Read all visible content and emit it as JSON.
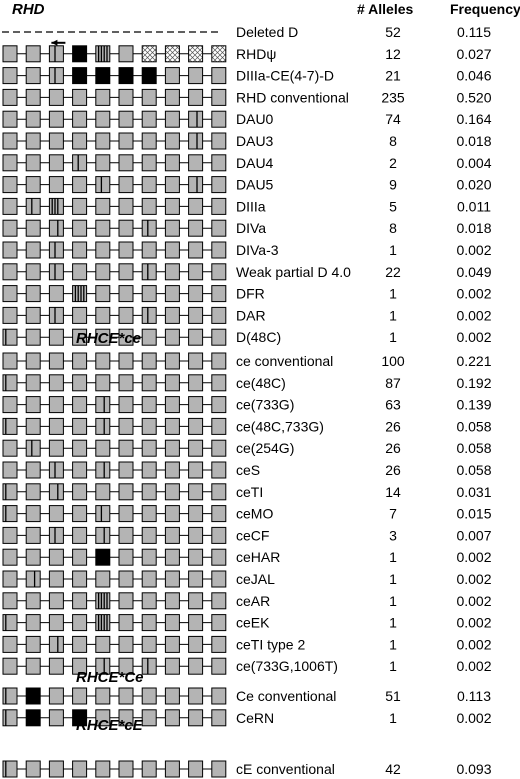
{
  "columns": {
    "alleles": "# Alleles",
    "frequency": "Frequency"
  },
  "colors": {
    "exon": "#b4b4b4",
    "exon_dark": "#000000",
    "outline": "#000000",
    "paper": "#ffffff"
  },
  "sections": [
    {
      "title": "RHD",
      "rows": [
        {
          "name": "Deleted D",
          "alleles": "52",
          "freq": "0.115",
          "deleted": true
        },
        {
          "name": "RHDψ",
          "alleles": "12",
          "freq": "0.027",
          "arrow": true,
          "exons": [
            {},
            {},
            {
              "marks": [
                2
              ]
            },
            {
              "fill": "black"
            },
            {
              "marks": [
                1,
                2,
                3,
                4
              ]
            },
            {},
            {
              "pattern": "cross"
            },
            {
              "pattern": "cross"
            },
            {
              "pattern": "cross"
            },
            {
              "pattern": "cross"
            }
          ]
        },
        {
          "name": "DIIIa-CE(4-7)-D",
          "alleles": "21",
          "freq": "0.046",
          "exons": [
            {},
            {},
            {
              "marks": [
                2
              ]
            },
            {
              "fill": "black"
            },
            {
              "fill": "black"
            },
            {
              "fill": "black"
            },
            {
              "fill": "black"
            },
            {},
            {},
            {}
          ]
        },
        {
          "name": "RHD conventional",
          "alleles": "235",
          "freq": "0.520",
          "exons": [
            {},
            {},
            {},
            {},
            {},
            {},
            {},
            {},
            {},
            {}
          ]
        },
        {
          "name": "DAU0",
          "alleles": "74",
          "freq": "0.164",
          "exons": [
            {},
            {},
            {},
            {},
            {},
            {},
            {},
            {},
            {
              "marks": [
                3
              ]
            },
            {}
          ]
        },
        {
          "name": "DAU3",
          "alleles": "8",
          "freq": "0.018",
          "exons": [
            {},
            {},
            {},
            {},
            {},
            {},
            {},
            {},
            {
              "marks": [
                3
              ]
            },
            {}
          ]
        },
        {
          "name": "DAU4",
          "alleles": "2",
          "freq": "0.004",
          "exons": [
            {},
            {},
            {},
            {
              "marks": [
                2
              ]
            },
            {},
            {},
            {},
            {},
            {},
            {}
          ]
        },
        {
          "name": "DAU5",
          "alleles": "9",
          "freq": "0.020",
          "exons": [
            {},
            {},
            {},
            {},
            {
              "marks": [
                2
              ]
            },
            {},
            {},
            {},
            {
              "marks": [
                3
              ]
            },
            {}
          ]
        },
        {
          "name": "DIIIa",
          "alleles": "5",
          "freq": "0.011",
          "exons": [
            {},
            {
              "marks": [
                2
              ]
            },
            {
              "marks": [
                1,
                2,
                3
              ]
            },
            {},
            {},
            {},
            {},
            {},
            {},
            {}
          ]
        },
        {
          "name": "DIVa",
          "alleles": "8",
          "freq": "0.018",
          "exons": [
            {},
            {},
            {
              "marks": [
                3
              ]
            },
            {},
            {},
            {},
            {
              "marks": [
                2
              ]
            },
            {},
            {},
            {}
          ]
        },
        {
          "name": "DIVa-3",
          "alleles": "1",
          "freq": "0.002",
          "exons": [
            {},
            {},
            {
              "marks": [
                2
              ]
            },
            {},
            {},
            {},
            {},
            {},
            {},
            {}
          ]
        },
        {
          "name": "Weak partial D 4.0",
          "alleles": "22",
          "freq": "0.049",
          "exons": [
            {},
            {},
            {
              "marks": [
                2
              ]
            },
            {},
            {},
            {},
            {
              "marks": [
                2
              ]
            },
            {},
            {},
            {}
          ]
        },
        {
          "name": "DFR",
          "alleles": "1",
          "freq": "0.002",
          "exons": [
            {},
            {},
            {},
            {
              "marks": [
                1,
                2,
                3,
                4
              ]
            },
            {},
            {},
            {},
            {},
            {},
            {}
          ]
        },
        {
          "name": "DAR",
          "alleles": "1",
          "freq": "0.002",
          "exons": [
            {},
            {},
            {
              "marks": [
                2
              ]
            },
            {},
            {},
            {},
            {
              "marks": [
                2
              ]
            },
            {},
            {},
            {}
          ]
        },
        {
          "name": "D(48C)",
          "alleles": "1",
          "freq": "0.002",
          "exons": [
            {
              "marks": [
                1
              ]
            },
            {},
            {},
            {},
            {},
            {},
            {},
            {},
            {},
            {}
          ]
        }
      ]
    },
    {
      "title": "RHCE*ce",
      "rows": [
        {
          "name": "ce conventional",
          "alleles": "100",
          "freq": "0.221",
          "exons": [
            {},
            {},
            {},
            {},
            {},
            {},
            {},
            {},
            {},
            {}
          ]
        },
        {
          "name": "ce(48C)",
          "alleles": "87",
          "freq": "0.192",
          "exons": [
            {
              "marks": [
                1
              ]
            },
            {},
            {},
            {},
            {},
            {},
            {},
            {},
            {},
            {}
          ]
        },
        {
          "name": "ce(733G)",
          "alleles": "63",
          "freq": "0.139",
          "exons": [
            {},
            {},
            {},
            {},
            {
              "marks": [
                3
              ]
            },
            {},
            {},
            {},
            {},
            {}
          ]
        },
        {
          "name": "ce(48C,733G)",
          "alleles": "26",
          "freq": "0.058",
          "exons": [
            {
              "marks": [
                1
              ]
            },
            {},
            {},
            {},
            {
              "marks": [
                3
              ]
            },
            {},
            {},
            {},
            {},
            {}
          ]
        },
        {
          "name": "ce(254G)",
          "alleles": "26",
          "freq": "0.058",
          "exons": [
            {},
            {
              "marks": [
                2
              ]
            },
            {},
            {},
            {},
            {},
            {},
            {},
            {},
            {}
          ]
        },
        {
          "name": "ceS",
          "alleles": "26",
          "freq": "0.058",
          "exons": [
            {},
            {},
            {
              "marks": [
                2
              ]
            },
            {},
            {
              "marks": [
                3
              ]
            },
            {},
            {},
            {},
            {},
            {}
          ]
        },
        {
          "name": "ceTI",
          "alleles": "14",
          "freq": "0.031",
          "exons": [
            {
              "marks": [
                1
              ]
            },
            {},
            {
              "marks": [
                3
              ]
            },
            {},
            {},
            {},
            {},
            {},
            {},
            {}
          ]
        },
        {
          "name": "ceMO",
          "alleles": "7",
          "freq": "0.015",
          "exons": [
            {
              "marks": [
                1
              ]
            },
            {},
            {},
            {},
            {
              "marks": [
                2
              ]
            },
            {},
            {},
            {},
            {},
            {}
          ]
        },
        {
          "name": "ceCF",
          "alleles": "3",
          "freq": "0.007",
          "exons": [
            {},
            {},
            {
              "marks": [
                2
              ]
            },
            {},
            {
              "marks": [
                3
              ]
            },
            {},
            {},
            {},
            {},
            {}
          ]
        },
        {
          "name": "ceHAR",
          "alleles": "1",
          "freq": "0.002",
          "exons": [
            {},
            {},
            {},
            {},
            {
              "fill": "black"
            },
            {},
            {},
            {},
            {},
            {}
          ]
        },
        {
          "name": "ceJAL",
          "alleles": "1",
          "freq": "0.002",
          "exons": [
            {},
            {
              "marks": [
                3
              ]
            },
            {},
            {},
            {},
            {},
            {},
            {},
            {},
            {}
          ]
        },
        {
          "name": "ceAR",
          "alleles": "1",
          "freq": "0.002",
          "exons": [
            {},
            {},
            {},
            {},
            {
              "marks": [
                1,
                2,
                3,
                4
              ]
            },
            {},
            {},
            {},
            {},
            {}
          ]
        },
        {
          "name": "ceEK",
          "alleles": "1",
          "freq": "0.002",
          "exons": [
            {
              "marks": [
                1
              ]
            },
            {},
            {},
            {},
            {
              "marks": [
                1,
                2,
                3,
                4
              ]
            },
            {},
            {},
            {},
            {},
            {}
          ]
        },
        {
          "name": "ceTI type 2",
          "alleles": "1",
          "freq": "0.002",
          "exons": [
            {},
            {},
            {
              "marks": [
                3
              ]
            },
            {},
            {},
            {},
            {},
            {},
            {},
            {}
          ]
        },
        {
          "name": "ce(733G,1006T)",
          "alleles": "1",
          "freq": "0.002",
          "exons": [
            {},
            {},
            {},
            {},
            {
              "marks": [
                3
              ]
            },
            {},
            {
              "marks": [
                2
              ]
            },
            {},
            {},
            {}
          ]
        }
      ]
    },
    {
      "title": "RHCE*Ce",
      "rows": [
        {
          "name": "Ce conventional",
          "alleles": "51",
          "freq": "0.113",
          "exons": [
            {
              "marks": [
                1
              ]
            },
            {
              "fill": "black"
            },
            {},
            {},
            {},
            {},
            {},
            {},
            {},
            {}
          ]
        },
        {
          "name": "CeRN",
          "alleles": "1",
          "freq": "0.002",
          "exons": [
            {
              "marks": [
                1
              ]
            },
            {
              "fill": "black"
            },
            {},
            {
              "fill": "black"
            },
            {},
            {},
            {},
            {},
            {},
            {}
          ]
        }
      ]
    },
    {
      "title": "RHCE*cE",
      "rows": [
        {
          "name": "cE conventional",
          "alleles": "42",
          "freq": "0.093",
          "exons": [
            {
              "marks": [
                1
              ]
            },
            {},
            {},
            {},
            {},
            {},
            {},
            {},
            {},
            {}
          ]
        }
      ]
    }
  ]
}
